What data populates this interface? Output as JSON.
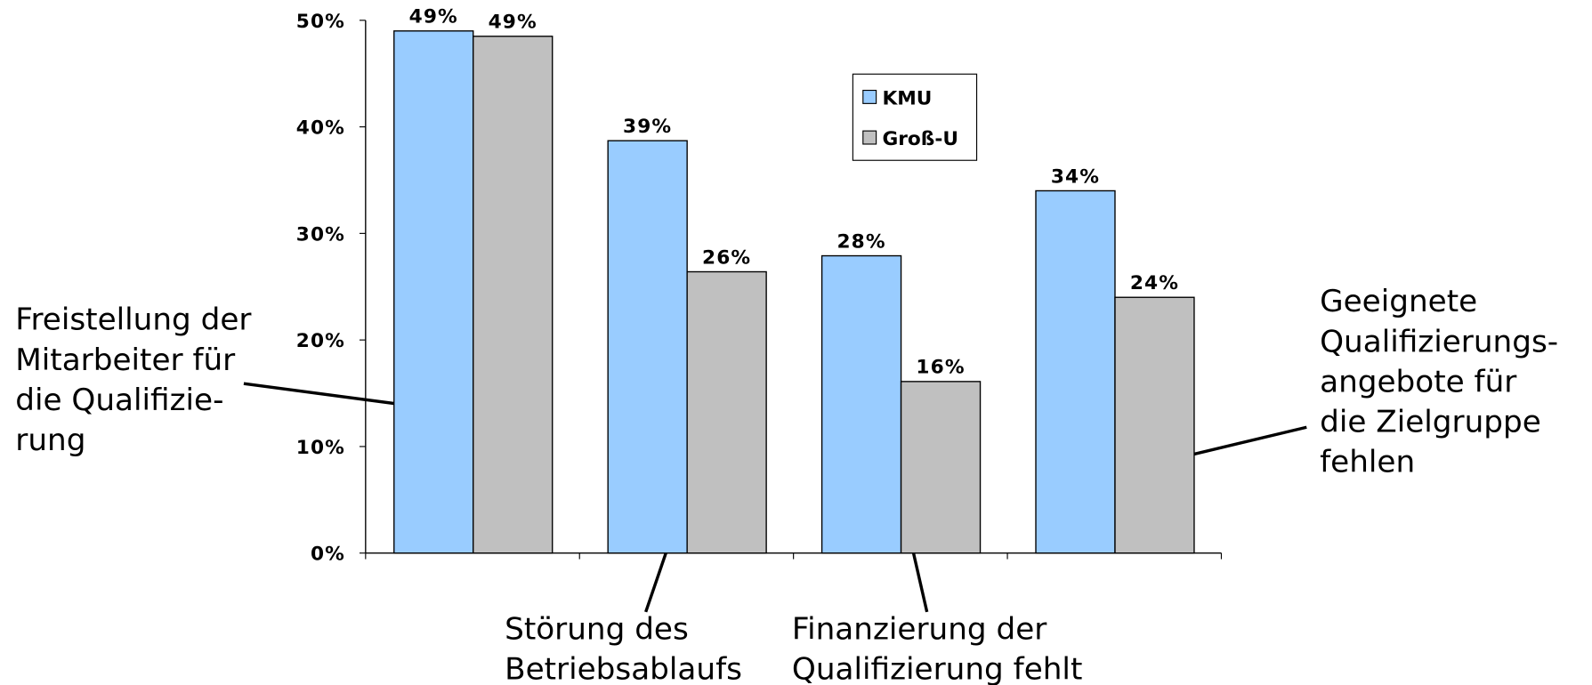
{
  "chart_data": {
    "type": "bar",
    "categories": [
      "Freistellung der\nMitarbeiter für\ndie Qualifizie-\nrung",
      "Störung des\nBetriebsablaufs",
      "Finanzierung der\nQualifizierung fehlt",
      "Geeignete\nQualifizierungs-\nangebote für\ndie Zielgruppe\nfehlen"
    ],
    "series": [
      {
        "name": "KMU",
        "color": "#99ccff",
        "values": [
          49,
          38.7,
          27.9,
          34
        ],
        "value_labels": [
          "49%",
          "39%",
          "28%",
          "34%"
        ]
      },
      {
        "name": "Groß-U",
        "color": "#c0c0c0",
        "values": [
          48.5,
          26.4,
          16.1,
          24
        ],
        "value_labels": [
          "49%",
          "26%",
          "16%",
          "24%"
        ]
      }
    ],
    "ylim": [
      0,
      50
    ],
    "yticks": [
      {
        "value": 0,
        "label": "0%"
      },
      {
        "value": 10,
        "label": "10%"
      },
      {
        "value": 20,
        "label": "20%"
      },
      {
        "value": 30,
        "label": "30%"
      },
      {
        "value": 40,
        "label": "40%"
      },
      {
        "value": 50,
        "label": "50%"
      }
    ],
    "legend": "upper-center",
    "grid": false
  }
}
